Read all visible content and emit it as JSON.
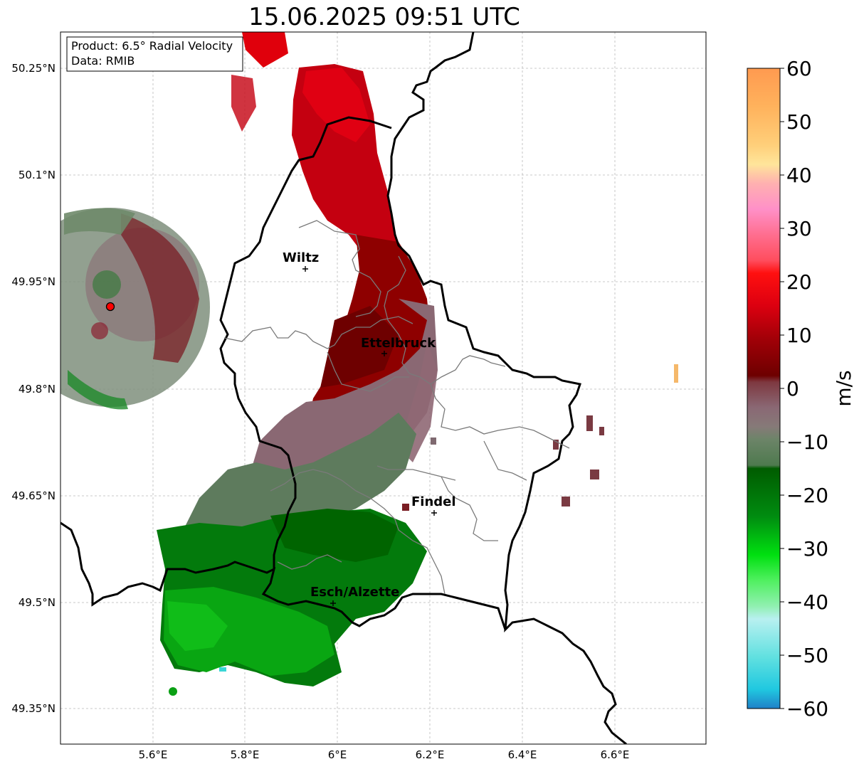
{
  "title": "15.06.2025 09:51 UTC",
  "info_box": {
    "product": "Product: 6.5° Radial Velocity",
    "data": "Data: RMIB"
  },
  "axes": {
    "lon_ticks": [
      "5.6°E",
      "5.8°E",
      "6°E",
      "6.2°E",
      "6.4°E",
      "6.6°E"
    ],
    "lat_ticks": [
      "50.25°N",
      "50.1°N",
      "49.95°N",
      "49.8°N",
      "49.65°N",
      "49.5°N",
      "49.35°N"
    ],
    "grid": true
  },
  "cities": [
    {
      "name": "Wiltz"
    },
    {
      "name": "Ettelbruck"
    },
    {
      "name": "Findel"
    },
    {
      "name": "Esch/Alzette"
    }
  ],
  "radar_site": {
    "color": "#ff0000"
  },
  "colorbar": {
    "label": "m/s",
    "ticks": [
      "60",
      "50",
      "40",
      "30",
      "20",
      "10",
      "0",
      "−10",
      "−20",
      "−30",
      "−40",
      "−50",
      "−60"
    ],
    "range": [
      -60,
      60
    ]
  }
}
